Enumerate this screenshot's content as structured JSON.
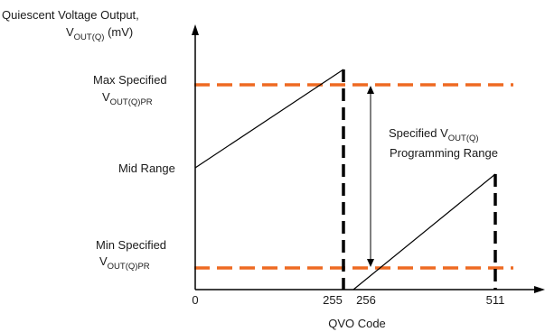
{
  "diagram": {
    "y_axis_label": {
      "line1": "Quiescent Voltage Output,",
      "line2_main": "V",
      "line2_sub": "OUT(Q)",
      "line2_unit": " (mV)"
    },
    "x_axis_label": "QVO Code",
    "max_label": {
      "line1": "Max Specified",
      "line2_main": "V",
      "line2_sub": "OUT(Q)PR"
    },
    "mid_label": "Mid Range",
    "min_label": {
      "line1": "Min Specified",
      "line2_main": "V",
      "line2_sub": "OUT(Q)PR"
    },
    "range_label": {
      "line1_main": "Specified V",
      "line1_sub": "OUT(Q)",
      "line2": "Programming Range"
    },
    "x_ticks": [
      "0",
      "255",
      "256",
      "511"
    ],
    "colors": {
      "limit_line": "#ee6a22",
      "axis": "#000000",
      "ramp": "#000000"
    }
  }
}
